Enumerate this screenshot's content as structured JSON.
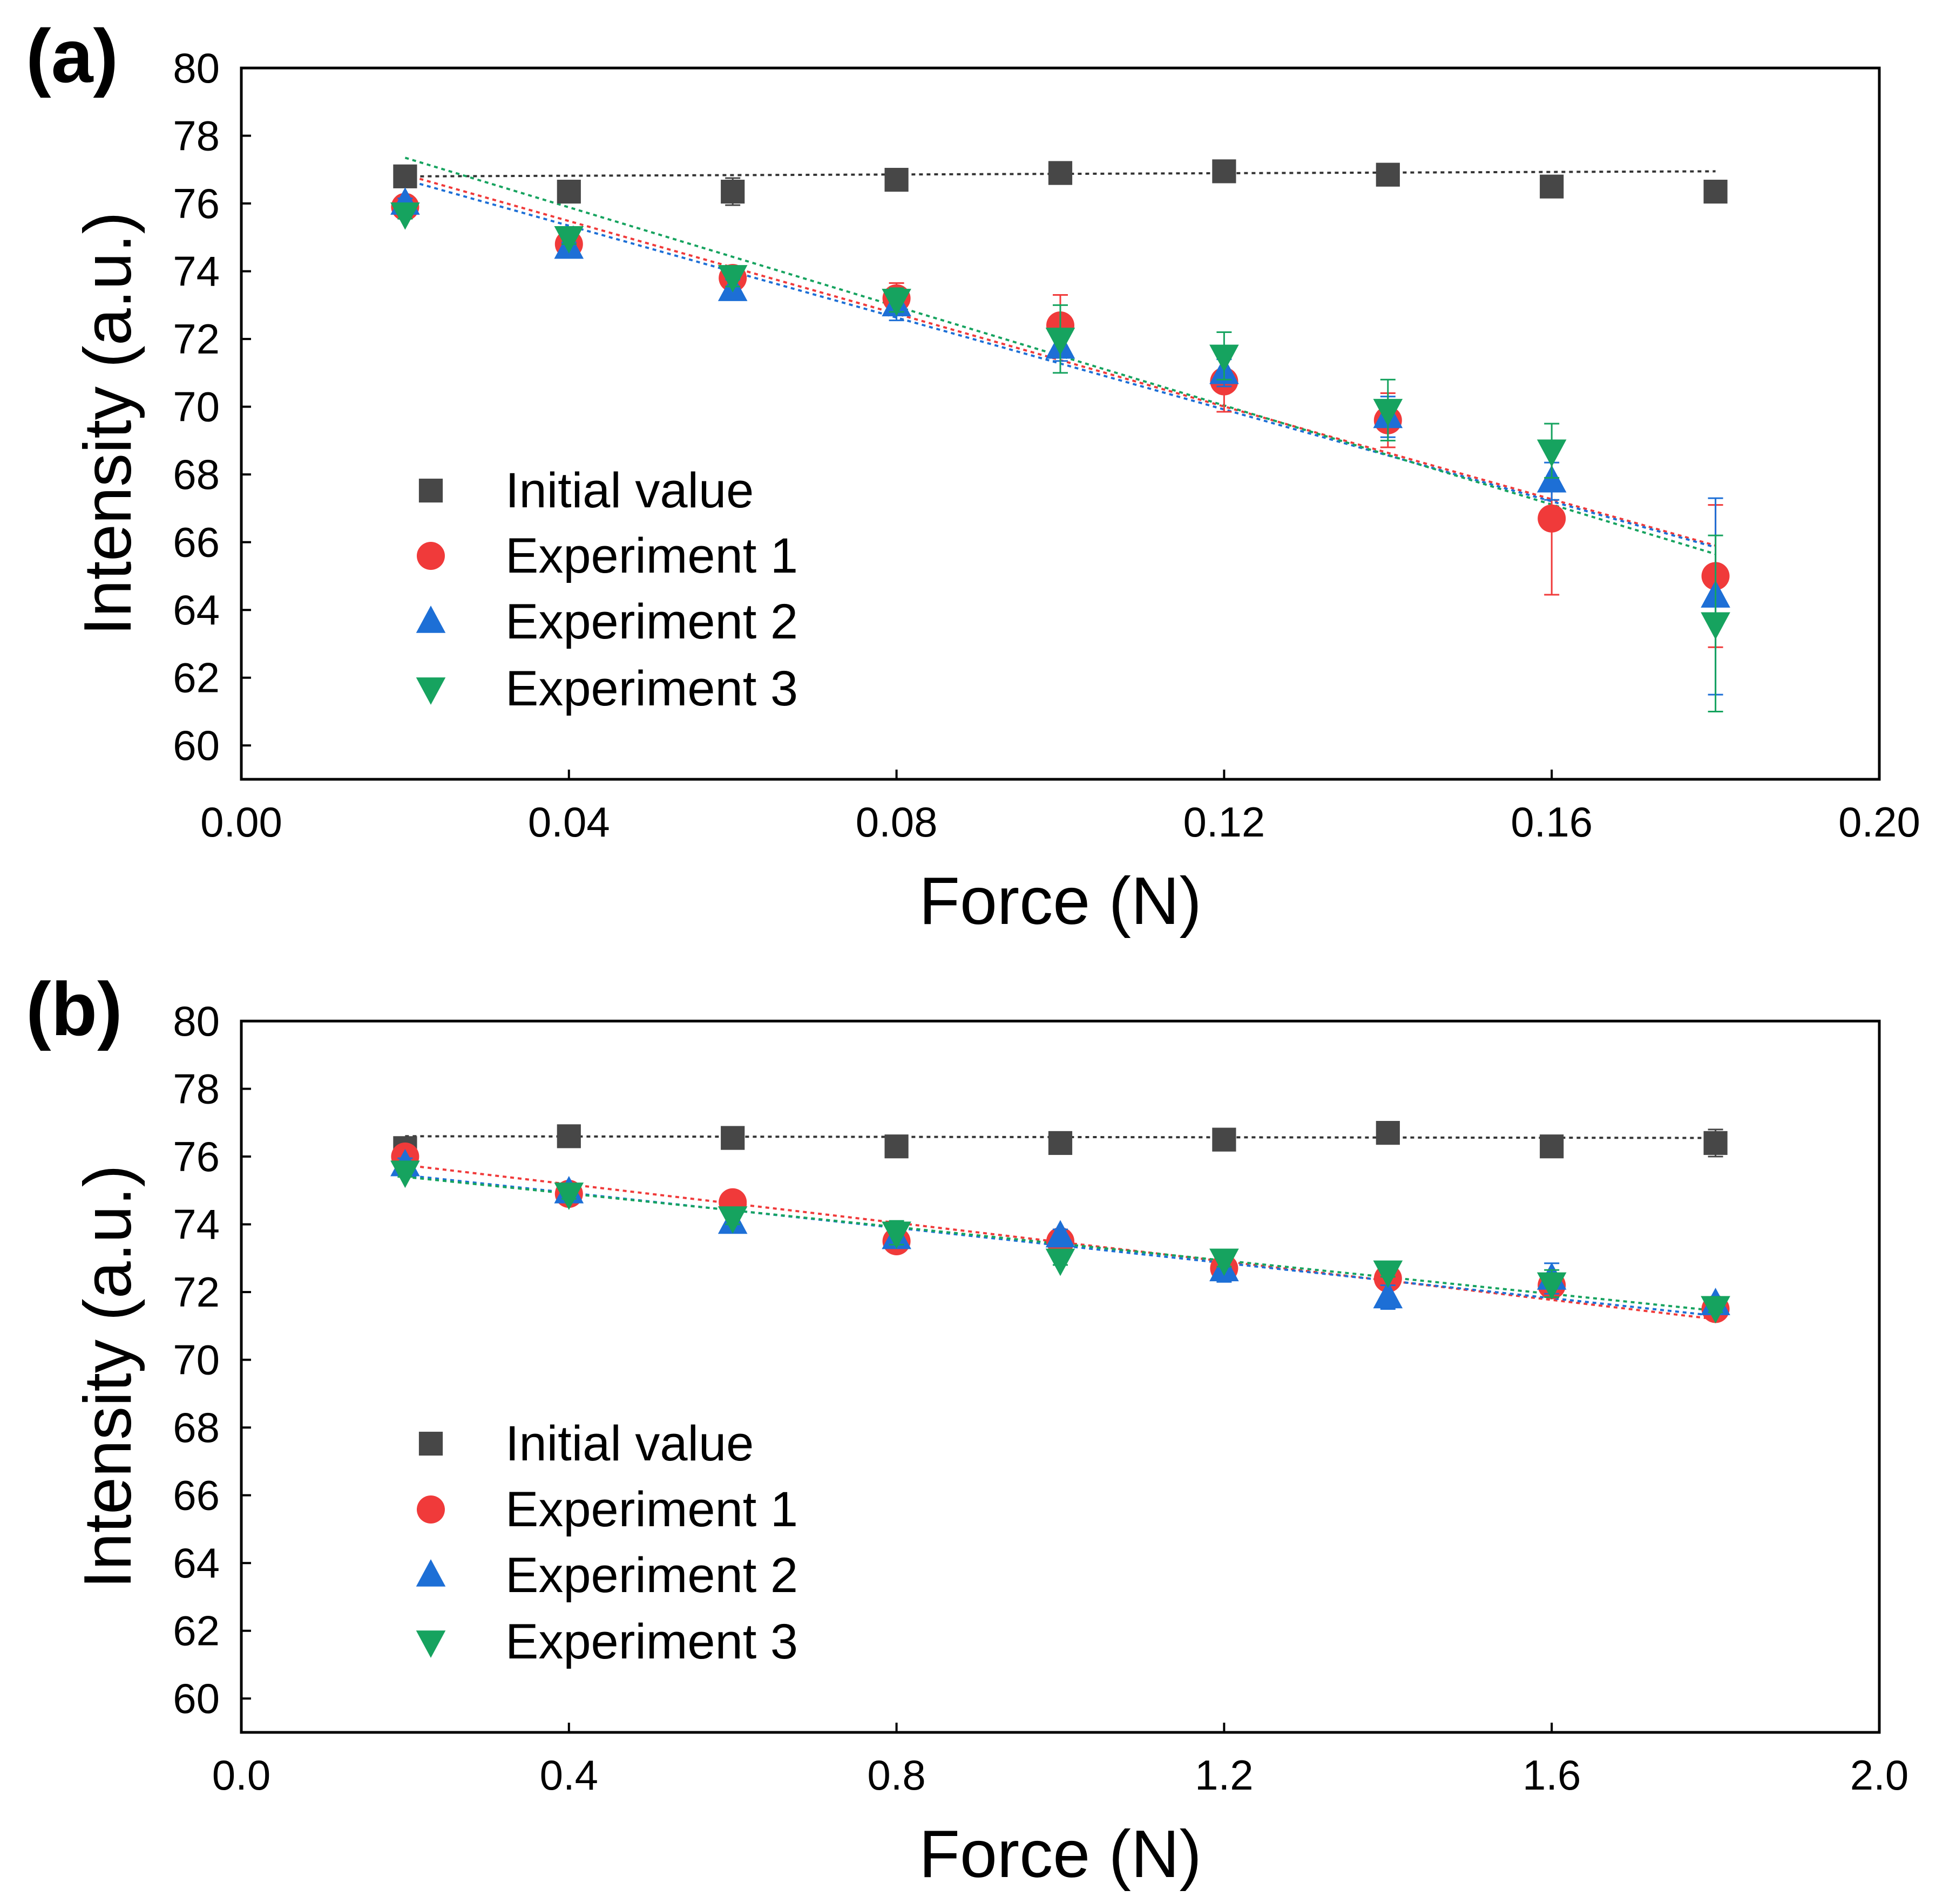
{
  "figure": {
    "panels": [
      {
        "label": "(a)",
        "xlabel": "Force (N)",
        "ylabel": "Intensity (a.u.)",
        "xticks": [
          "0.00",
          "0.04",
          "0.08",
          "0.12",
          "0.16",
          "0.20"
        ],
        "yticks": [
          "60",
          "62",
          "64",
          "66",
          "68",
          "70",
          "72",
          "74",
          "76",
          "78",
          "80"
        ],
        "legend": [
          "Initial value",
          "Experiment 1",
          "Experiment 2",
          "Experiment 3"
        ]
      },
      {
        "label": "(b)",
        "xlabel": "Force (N)",
        "ylabel": "Intensity (a.u.)",
        "xticks": [
          "0.0",
          "0.4",
          "0.8",
          "1.2",
          "1.6",
          "2.0"
        ],
        "yticks": [
          "60",
          "62",
          "64",
          "66",
          "68",
          "70",
          "72",
          "74",
          "76",
          "78",
          "80"
        ],
        "legend": [
          "Initial value",
          "Experiment 1",
          "Experiment 2",
          "Experiment 3"
        ]
      }
    ]
  },
  "series_style": [
    {
      "name": "Initial value",
      "marker": "square",
      "color": "#474747",
      "fit_color": "#333333"
    },
    {
      "name": "Experiment 1",
      "marker": "circle",
      "color": "#f03a3a",
      "fit_color": "#f03a3a"
    },
    {
      "name": "Experiment 2",
      "marker": "triangle-up",
      "color": "#1d6fd6",
      "fit_color": "#1d6fd6"
    },
    {
      "name": "Experiment 3",
      "marker": "triangle-down",
      "color": "#16a35f",
      "fit_color": "#16a35f"
    }
  ],
  "chart_data": [
    {
      "type": "scatter",
      "title": "(a)",
      "xlabel": "Force (N)",
      "ylabel": "Intensity (a.u.)",
      "xlim": [
        0.0,
        0.2
      ],
      "ylim": [
        59,
        80
      ],
      "legend_position": "left-middle",
      "x": [
        0.02,
        0.04,
        0.06,
        0.08,
        0.1,
        0.12,
        0.14,
        0.16,
        0.18
      ],
      "series": [
        {
          "name": "Initial value",
          "y": [
            76.8,
            76.35,
            76.35,
            76.7,
            76.9,
            76.95,
            76.85,
            76.5,
            76.35
          ],
          "err": [
            0.15,
            0.15,
            0.4,
            0.15,
            0.15,
            0.15,
            0.1,
            0.3,
            0.15
          ],
          "fit": [
            76.8,
            76.95
          ]
        },
        {
          "name": "Experiment 1",
          "y": [
            75.9,
            74.8,
            73.8,
            73.2,
            72.4,
            70.75,
            69.6,
            66.7,
            65.0
          ],
          "err": [
            0.15,
            0.15,
            0.3,
            0.45,
            0.9,
            0.9,
            0.8,
            2.25,
            2.1
          ],
          "fit": [
            76.85,
            65.9
          ]
        },
        {
          "name": "Experiment 2",
          "y": [
            76.0,
            74.7,
            73.45,
            73.0,
            71.75,
            71.0,
            69.7,
            67.8,
            64.4
          ],
          "err": [
            0.15,
            0.15,
            0.3,
            0.45,
            0.4,
            0.4,
            0.6,
            0.55,
            2.9
          ],
          "fit": [
            76.7,
            65.85
          ]
        },
        {
          "name": "Experiment 3",
          "y": [
            75.7,
            75.0,
            73.85,
            73.15,
            72.0,
            71.5,
            69.9,
            68.7,
            63.6
          ],
          "err": [
            0.15,
            0.2,
            0.3,
            0.35,
            1.0,
            0.7,
            0.9,
            0.8,
            2.6
          ],
          "fit": [
            77.35,
            65.65
          ]
        }
      ]
    },
    {
      "type": "scatter",
      "title": "(b)",
      "xlabel": "Force (N)",
      "ylabel": "Intensity (a.u.)",
      "xlim": [
        0.0,
        2.0
      ],
      "ylim": [
        59,
        80
      ],
      "legend_position": "left-middle",
      "x": [
        0.2,
        0.4,
        0.6,
        0.8,
        1.0,
        1.2,
        1.4,
        1.6,
        1.8
      ],
      "series": [
        {
          "name": "Initial value",
          "y": [
            76.25,
            76.6,
            76.55,
            76.3,
            76.4,
            76.5,
            76.7,
            76.3,
            76.4
          ],
          "err": [
            0.15,
            0.1,
            0.25,
            0.15,
            0.1,
            0.1,
            0.1,
            0.1,
            0.4
          ],
          "fit": [
            76.6,
            76.55
          ]
        },
        {
          "name": "Experiment 1",
          "y": [
            76.0,
            74.9,
            74.65,
            73.5,
            73.5,
            72.7,
            72.4,
            72.2,
            71.5
          ],
          "err": [
            0.2,
            0.1,
            0.2,
            0.2,
            0.2,
            0.35,
            0.2,
            0.3,
            0.15
          ],
          "fit": [
            75.75,
            71.2
          ]
        },
        {
          "name": "Experiment 2",
          "y": [
            75.75,
            74.95,
            74.05,
            73.6,
            73.65,
            72.65,
            71.85,
            72.4,
            71.65
          ],
          "err": [
            0.2,
            0.15,
            0.15,
            0.25,
            0.2,
            0.35,
            0.35,
            0.45,
            0.15
          ],
          "fit": [
            75.45,
            71.3
          ]
        },
        {
          "name": "Experiment 3",
          "y": [
            75.55,
            74.9,
            74.2,
            73.75,
            72.95,
            72.95,
            72.6,
            72.25,
            71.55
          ],
          "err": [
            0.15,
            0.15,
            0.2,
            0.35,
            0.15,
            0.2,
            0.15,
            0.4,
            0.15
          ],
          "fit": [
            75.4,
            71.45
          ]
        }
      ]
    }
  ]
}
